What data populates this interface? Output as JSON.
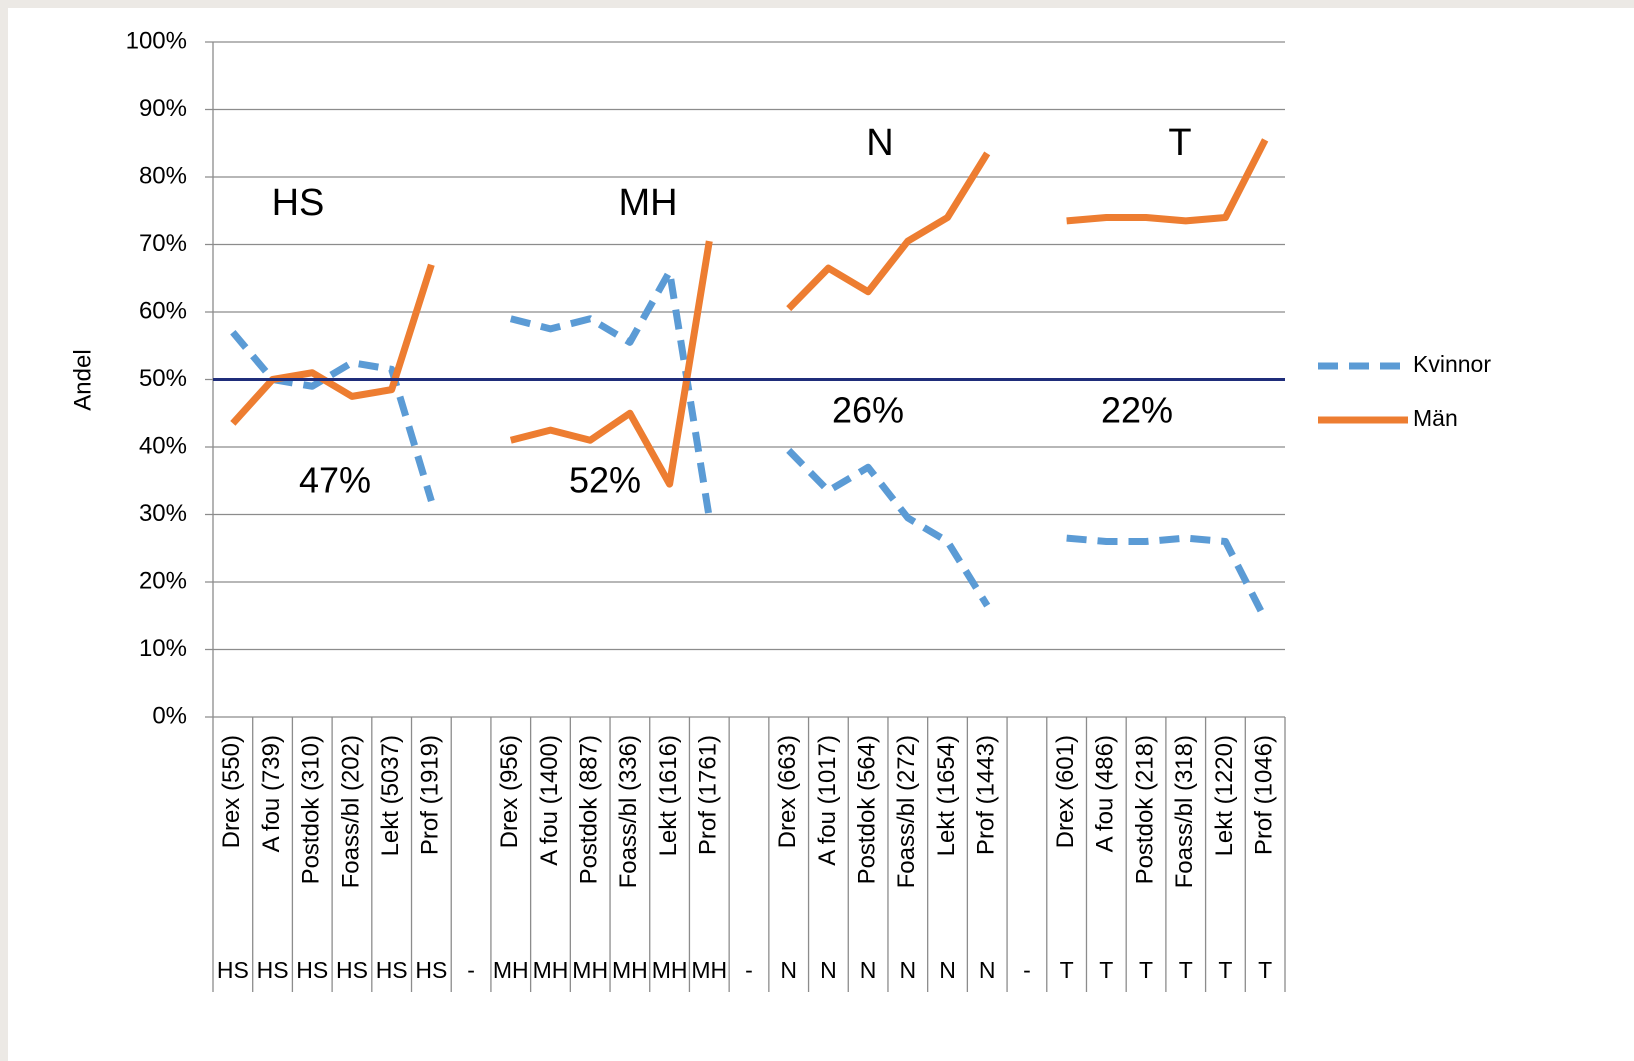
{
  "chart_data": {
    "type": "line",
    "ylabel": "Andel",
    "categories": [
      "Drex (550)",
      "A fou (739)",
      "Postdok (310)",
      "Foass/bl (202)",
      "Lekt (5037)",
      "Prof (1919)",
      null,
      "Drex (956)",
      "A fou (1400)",
      "Postdok (887)",
      "Foass/bl (336)",
      "Lekt (1616)",
      "Prof (1761)",
      null,
      "Drex (663)",
      "A fou (1017)",
      "Postdok (564)",
      "Foass/bl (272)",
      "Lekt (1654)",
      "Prof (1443)",
      null,
      "Drex (601)",
      "A fou (486)",
      "Postdok (218)",
      "Foass/bl (318)",
      "Lekt (1220)",
      "Prof (1046)"
    ],
    "groups": [
      "HS",
      "HS",
      "HS",
      "HS",
      "HS",
      "HS",
      "-",
      "MH",
      "MH",
      "MH",
      "MH",
      "MH",
      "MH",
      "-",
      "N",
      "N",
      "N",
      "N",
      "N",
      "N",
      "-",
      "T",
      "T",
      "T",
      "T",
      "T",
      "T"
    ],
    "series": [
      {
        "name": "Kvinnor",
        "color": "#5b9bd5",
        "dashed": true,
        "values": [
          57,
          50,
          49,
          52.5,
          51.5,
          32,
          null,
          59,
          57.5,
          59,
          55.5,
          66,
          29.5,
          null,
          39.5,
          33.5,
          37,
          29.5,
          26,
          16.5,
          null,
          26.5,
          26,
          26,
          26.5,
          26,
          14.5
        ]
      },
      {
        "name": "Män",
        "color": "#ed7d31",
        "dashed": false,
        "values": [
          43.5,
          50,
          51,
          47.5,
          48.5,
          67,
          null,
          41,
          42.5,
          41,
          45,
          34.5,
          70.5,
          null,
          60.5,
          66.5,
          63,
          70.5,
          74,
          83.5,
          null,
          73.5,
          74,
          74,
          73.5,
          74,
          85.5
        ]
      }
    ],
    "ylim": [
      0,
      100
    ],
    "yticks": [
      {
        "value": 0,
        "label": "0%"
      },
      {
        "value": 10,
        "label": "10%"
      },
      {
        "value": 20,
        "label": "20%"
      },
      {
        "value": 30,
        "label": "30%"
      },
      {
        "value": 40,
        "label": "40%"
      },
      {
        "value": 50,
        "label": "50%"
      },
      {
        "value": 60,
        "label": "60%"
      },
      {
        "value": 70,
        "label": "70%"
      },
      {
        "value": 80,
        "label": "80%"
      },
      {
        "value": 90,
        "label": "90%"
      },
      {
        "value": 100,
        "label": "100%"
      }
    ],
    "grid": true,
    "reference_line": {
      "value": 50,
      "color": "#1f2d7a"
    },
    "annotations": [
      "HS",
      "MH",
      "N",
      "T",
      "47%",
      "52%",
      "26%",
      "22%"
    ],
    "legend": "right"
  }
}
